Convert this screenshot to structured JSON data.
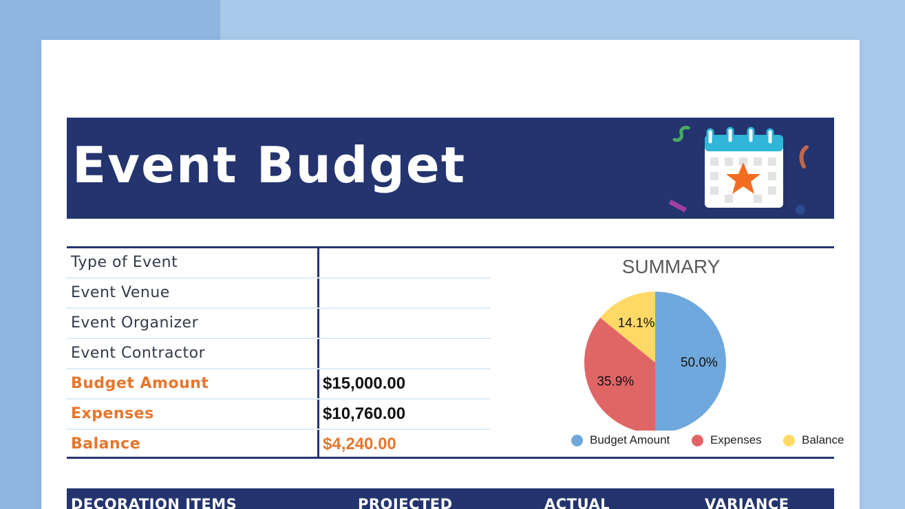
{
  "header": {
    "title": "Event Budget"
  },
  "info": {
    "rows": [
      {
        "label": "Type of Event",
        "value": "",
        "accent": false
      },
      {
        "label": "Event Venue",
        "value": "",
        "accent": false
      },
      {
        "label": "Event Organizer",
        "value": "",
        "accent": false
      },
      {
        "label": "Event Contractor",
        "value": "",
        "accent": false
      },
      {
        "label": "Budget Amount",
        "value": "$15,000.00",
        "accent": true
      },
      {
        "label": "Expenses",
        "value": "$10,760.00",
        "accent": true
      },
      {
        "label": "Balance",
        "value": "$4,240.00",
        "accent": true
      }
    ]
  },
  "chart_data": {
    "type": "pie",
    "title": "SUMMARY",
    "categories": [
      "Budget Amount",
      "Expenses",
      "Balance"
    ],
    "values": [
      50.0,
      35.9,
      14.1
    ],
    "data_labels": [
      "50.0%",
      "35.9%",
      "14.1%"
    ],
    "colors": [
      "#6fa8dc",
      "#e06666",
      "#ffd966"
    ],
    "legend_position": "bottom"
  },
  "decoration_table": {
    "columns": [
      "DECORATION ITEMS",
      "PROJECTED",
      "ACTUAL",
      "VARIANCE"
    ]
  },
  "colors": {
    "navy": "#24346e",
    "accent_orange": "#e6762c",
    "calendar_blue": "#2fb6d8",
    "star_orange": "#f26d21"
  }
}
